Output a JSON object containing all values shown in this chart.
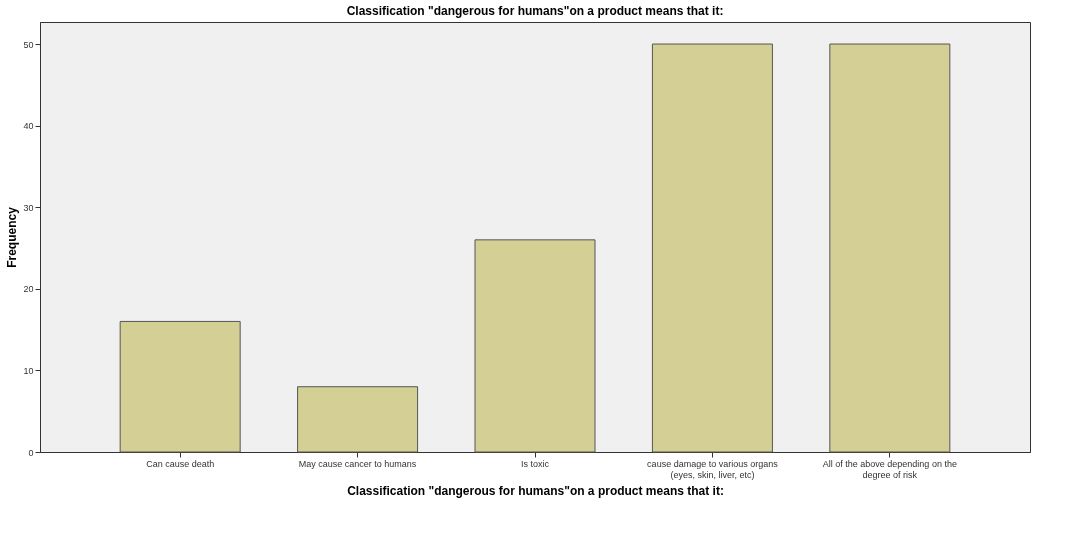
{
  "chart_data": {
    "type": "bar",
    "title": "Classification \"dangerous for humans\"on  a product means that it:",
    "xlabel": "Classification \"dangerous for humans\"on  a product means that it:",
    "ylabel": "Frequency",
    "categories": [
      "Can cause death",
      "May cause cancer to  humans",
      "Is toxic",
      "cause damage to various  organs\n(eyes, skin, liver, etc)",
      "All of the above depending on the\ndegree of risk"
    ],
    "values": [
      16,
      8,
      26,
      50,
      50
    ],
    "color": "#d4cf94",
    "ylim": [
      0,
      52.7
    ],
    "yticks": [
      0,
      10,
      20,
      30,
      40,
      50
    ],
    "grid": false
  }
}
